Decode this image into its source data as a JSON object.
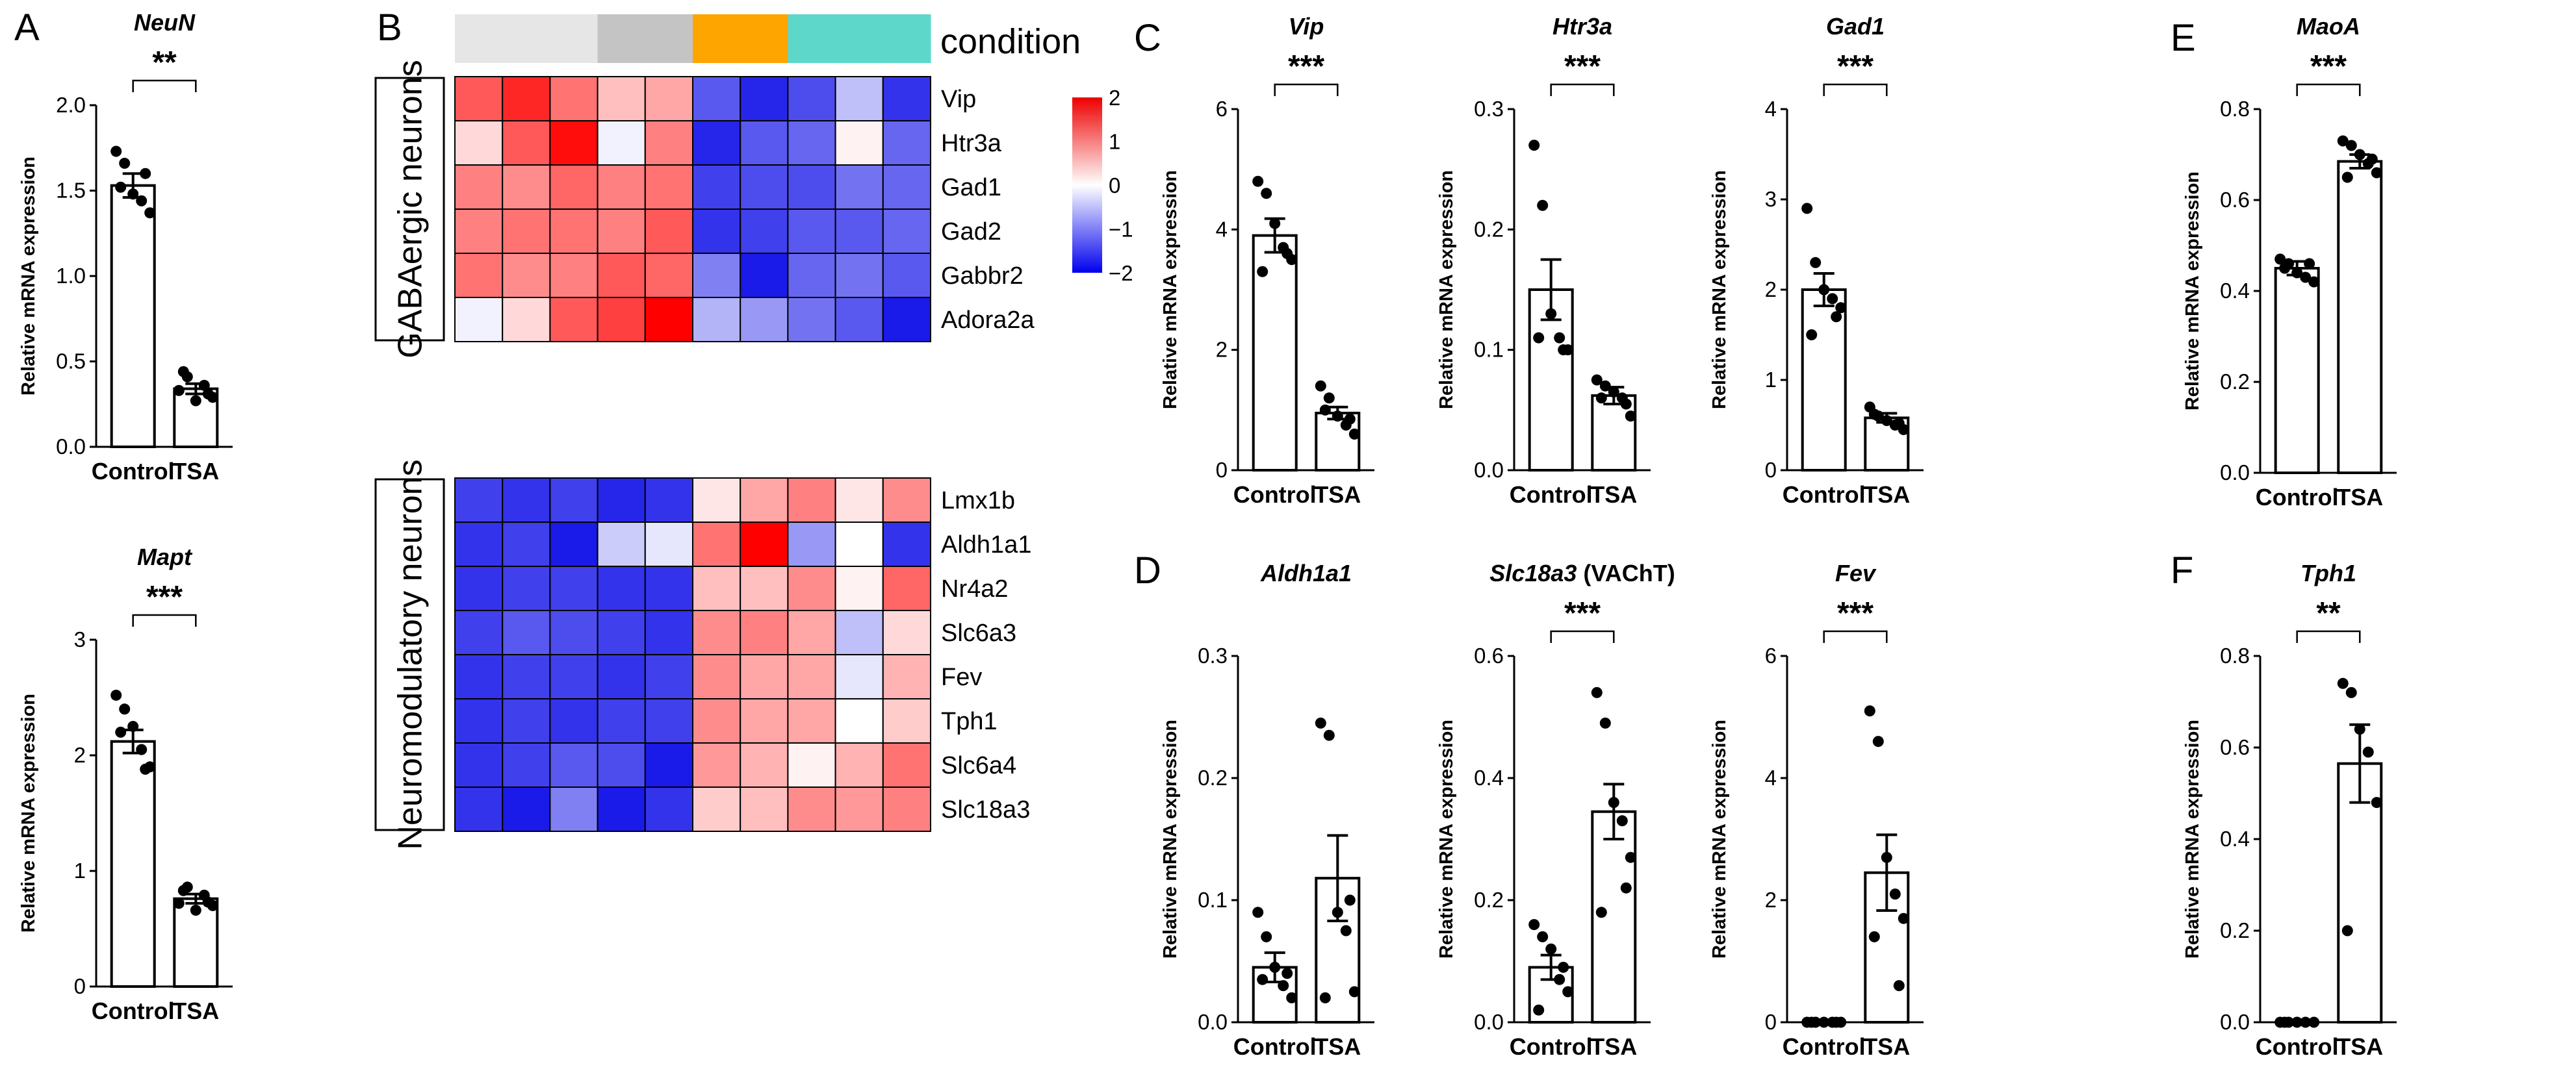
{
  "panel_labels": [
    "A",
    "B",
    "C",
    "D",
    "E",
    "F"
  ],
  "chart_data": [
    {
      "type": "bar",
      "panel": "A",
      "title": "NeuN",
      "ylabel": "Relative mRNA expression",
      "categories": [
        "Control",
        "TSA"
      ],
      "ylim": [
        0,
        2.0
      ],
      "yticks": [
        "0.0",
        "0.5",
        "1.0",
        "1.5",
        "2.0"
      ],
      "values": [
        1.53,
        0.34
      ],
      "sem": [
        0.07,
        0.03
      ],
      "points": [
        [
          1.73,
          1.66,
          1.48,
          1.44,
          1.37,
          1.52,
          1.6
        ],
        [
          0.33,
          0.41,
          0.27,
          0.36,
          0.29,
          0.44,
          0.31
        ]
      ],
      "significance": "**"
    },
    {
      "type": "bar",
      "panel": "A",
      "title": "Mapt",
      "ylabel": "Relative mRNA expression",
      "categories": [
        "Control",
        "TSA"
      ],
      "ylim": [
        0,
        3
      ],
      "yticks": [
        "0",
        "1",
        "2",
        "3"
      ],
      "values": [
        2.12,
        0.76
      ],
      "sem": [
        0.1,
        0.04
      ],
      "points": [
        [
          2.52,
          2.4,
          2.25,
          2.05,
          1.9,
          2.2,
          1.88
        ],
        [
          0.72,
          0.86,
          0.66,
          0.79,
          0.7,
          0.83,
          0.73
        ]
      ],
      "significance": "***"
    },
    {
      "type": "bar",
      "panel": "C",
      "title": "Vip",
      "ylabel": "Relative mRNA expression",
      "categories": [
        "Control",
        "TSA"
      ],
      "ylim": [
        0,
        6
      ],
      "yticks": [
        "0",
        "2",
        "4",
        "6"
      ],
      "values": [
        3.9,
        0.95
      ],
      "sem": [
        0.28,
        0.1
      ],
      "points": [
        [
          4.8,
          4.6,
          4.1,
          3.7,
          3.5,
          3.3,
          3.6
        ],
        [
          1.4,
          1.2,
          0.9,
          0.75,
          0.6,
          1.0,
          0.85
        ]
      ],
      "significance": "***"
    },
    {
      "type": "bar",
      "panel": "C",
      "title": "Htr3a",
      "ylabel": "Relative mRNA expression",
      "categories": [
        "Control",
        "TSA"
      ],
      "ylim": [
        0,
        0.3
      ],
      "yticks": [
        "0.0",
        "0.1",
        "0.2",
        "0.3"
      ],
      "values": [
        0.15,
        0.062
      ],
      "sem": [
        0.025,
        0.007
      ],
      "points": [
        [
          0.27,
          0.22,
          0.13,
          0.11,
          0.1,
          0.11,
          0.1
        ],
        [
          0.075,
          0.07,
          0.065,
          0.06,
          0.045,
          0.06,
          0.055
        ]
      ],
      "significance": "***"
    },
    {
      "type": "bar",
      "panel": "C",
      "title": "Gad1",
      "ylabel": "Relative mRNA expression",
      "categories": [
        "Control",
        "TSA"
      ],
      "ylim": [
        0,
        4
      ],
      "yticks": [
        "0",
        "1",
        "2",
        "3",
        "4"
      ],
      "values": [
        2.0,
        0.58
      ],
      "sem": [
        0.18,
        0.05
      ],
      "points": [
        [
          2.9,
          2.3,
          2.0,
          1.9,
          1.8,
          1.5,
          1.7
        ],
        [
          0.7,
          0.6,
          0.55,
          0.5,
          0.45,
          0.62,
          0.52
        ]
      ],
      "significance": "***"
    },
    {
      "type": "bar",
      "panel": "E",
      "title": "MaoA",
      "ylabel": "Relative mRNA expression",
      "categories": [
        "Control",
        "TSA"
      ],
      "ylim": [
        0,
        0.8
      ],
      "yticks": [
        "0.0",
        "0.2",
        "0.4",
        "0.6",
        "0.8"
      ],
      "values": [
        0.45,
        0.685
      ],
      "sem": [
        0.015,
        0.015
      ],
      "points": [
        [
          0.47,
          0.46,
          0.44,
          0.43,
          0.42,
          0.45,
          0.46
        ],
        [
          0.73,
          0.72,
          0.7,
          0.68,
          0.66,
          0.65,
          0.69
        ]
      ],
      "significance": "***"
    },
    {
      "type": "bar",
      "panel": "D",
      "title": "Aldh1a1",
      "ylabel": "Relative mRNA expression",
      "categories": [
        "Control",
        "TSA"
      ],
      "ylim": [
        0,
        0.3
      ],
      "yticks": [
        "0.0",
        "0.1",
        "0.2",
        "0.3"
      ],
      "values": [
        0.045,
        0.118
      ],
      "sem": [
        0.012,
        0.035
      ],
      "points": [
        [
          0.09,
          0.07,
          0.045,
          0.03,
          0.02,
          0.035,
          0.04
        ],
        [
          0.245,
          0.235,
          0.09,
          0.075,
          0.025,
          0.02,
          0.1
        ]
      ]
    },
    {
      "type": "bar",
      "panel": "D",
      "title": "Slc18a3",
      "title_suffix": " (VAChT)",
      "ylabel": "Relative mRNA expression",
      "categories": [
        "Control",
        "TSA"
      ],
      "ylim": [
        0,
        0.6
      ],
      "yticks": [
        "0.0",
        "0.2",
        "0.4",
        "0.6"
      ],
      "values": [
        0.09,
        0.345
      ],
      "sem": [
        0.02,
        0.045
      ],
      "points": [
        [
          0.16,
          0.14,
          0.12,
          0.07,
          0.05,
          0.02,
          0.09
        ],
        [
          0.54,
          0.49,
          0.36,
          0.33,
          0.27,
          0.18,
          0.22
        ]
      ],
      "significance": "***"
    },
    {
      "type": "bar",
      "panel": "D",
      "title": "Fev",
      "ylabel": "Relative mRNA expression",
      "categories": [
        "Control",
        "TSA"
      ],
      "ylim": [
        0,
        6
      ],
      "yticks": [
        "0",
        "2",
        "4",
        "6"
      ],
      "values": [
        0.0,
        2.45
      ],
      "sem": [
        0.0,
        0.62
      ],
      "points": [
        [
          0,
          0,
          0,
          0,
          0,
          0,
          0
        ],
        [
          5.1,
          4.6,
          2.7,
          2.1,
          1.7,
          1.4,
          0.6
        ]
      ],
      "significance": "***"
    },
    {
      "type": "bar",
      "panel": "F",
      "title": "Tph1",
      "ylabel": "Relative mRNA expression",
      "categories": [
        "Control",
        "TSA"
      ],
      "ylim": [
        0,
        0.8
      ],
      "yticks": [
        "0.0",
        "0.2",
        "0.4",
        "0.6",
        "0.8"
      ],
      "values": [
        0.0,
        0.565
      ],
      "sem": [
        0.0,
        0.085
      ],
      "points": [
        [
          0,
          0,
          0,
          0,
          0,
          0
        ],
        [
          0.74,
          0.72,
          0.64,
          0.59,
          0.48,
          0.2
        ]
      ],
      "significance": "**"
    },
    {
      "type": "heatmap",
      "panel": "B",
      "condition_label": "condition",
      "condition_colors": [
        "#e6e6e6",
        "#e6e6e6",
        "#e6e6e6",
        "#c4c4c4",
        "#c4c4c4",
        "#ffa500",
        "#ffa500",
        "#5ed7cb",
        "#5ed7cb",
        "#5ed7cb"
      ],
      "groups": [
        {
          "label": "GABAergic neurons",
          "rows": [
            "Vip",
            "Htr3a",
            "Gad1",
            "Gad2",
            "Gabbr2",
            "Adora2a"
          ]
        },
        {
          "label": "Neuromodulatory neurons",
          "rows": [
            "Lmx1b",
            "Aldh1a1",
            "Nr4a2",
            "Slc6a3",
            "Fev",
            "Tph1",
            "Slc6a4",
            "Slc18a3"
          ]
        }
      ],
      "matrix": [
        [
          1.3,
          1.7,
          1.1,
          0.5,
          0.7,
          -1.3,
          -1.7,
          -1.4,
          -0.5,
          -1.6
        ],
        [
          0.3,
          1.3,
          1.9,
          -0.1,
          1.0,
          -1.7,
          -1.3,
          -1.2,
          0.1,
          -1.2
        ],
        [
          1.0,
          0.9,
          1.2,
          1.0,
          1.1,
          -1.5,
          -1.4,
          -1.4,
          -1.1,
          -1.2
        ],
        [
          1.0,
          1.1,
          1.1,
          1.0,
          1.3,
          -1.6,
          -1.5,
          -1.3,
          -1.3,
          -1.2
        ],
        [
          1.1,
          0.9,
          1.0,
          1.3,
          1.2,
          -1.0,
          -1.8,
          -1.2,
          -1.1,
          -1.3
        ],
        [
          -0.1,
          0.3,
          1.3,
          1.5,
          2.0,
          -0.6,
          -0.8,
          -1.1,
          -1.3,
          -1.8
        ],
        [
          -1.5,
          -1.6,
          -1.5,
          -1.7,
          -1.6,
          0.2,
          0.7,
          1.0,
          0.2,
          0.9
        ],
        [
          -1.6,
          -1.5,
          -1.8,
          -0.4,
          -0.2,
          1.1,
          2.0,
          -0.8,
          0.0,
          -1.6
        ],
        [
          -1.6,
          -1.5,
          -1.5,
          -1.6,
          -1.6,
          0.5,
          0.5,
          0.9,
          0.1,
          1.2
        ],
        [
          -1.5,
          -1.3,
          -1.4,
          -1.5,
          -1.6,
          0.9,
          1.0,
          0.7,
          -0.5,
          0.3
        ],
        [
          -1.6,
          -1.5,
          -1.5,
          -1.6,
          -1.5,
          0.9,
          0.7,
          0.7,
          -0.2,
          0.6
        ],
        [
          -1.6,
          -1.5,
          -1.6,
          -1.5,
          -1.5,
          0.9,
          0.7,
          0.7,
          0.0,
          0.4
        ],
        [
          -1.6,
          -1.5,
          -1.3,
          -1.4,
          -1.8,
          0.8,
          0.6,
          0.1,
          0.6,
          1.1
        ],
        [
          -1.6,
          -1.8,
          -1.0,
          -1.8,
          -1.6,
          0.4,
          0.5,
          0.9,
          0.8,
          1.0
        ]
      ],
      "colorbar": {
        "min": -2,
        "max": 2,
        "ticks": [
          "2",
          "1",
          "0",
          "−1",
          "−2"
        ],
        "colors": [
          "#0000ee",
          "#ffffff",
          "#ee0000"
        ]
      }
    }
  ]
}
